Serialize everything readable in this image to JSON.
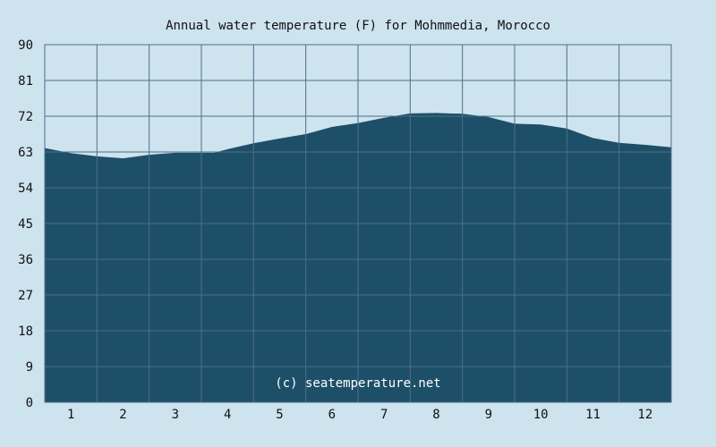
{
  "chart_data": {
    "type": "area",
    "title": "Annual water temperature (F) for Mohmmedia, Morocco",
    "watermark": "(c) seatemperature.net",
    "x_ticks": [
      "1",
      "2",
      "3",
      "4",
      "5",
      "6",
      "7",
      "8",
      "9",
      "10",
      "11",
      "12"
    ],
    "y_ticks": [
      "0",
      "9",
      "18",
      "27",
      "36",
      "45",
      "54",
      "63",
      "72",
      "81",
      "90"
    ],
    "ylim": [
      0,
      90
    ],
    "xlim": [
      0.5,
      12.5
    ],
    "grid": true,
    "series": [
      {
        "x": [
          0.5,
          1.0,
          1.5,
          2.0,
          2.5,
          3.0,
          3.5,
          3.75,
          4.0,
          4.5,
          5.0,
          5.5,
          6.0,
          6.5,
          7.0,
          7.5,
          8.0,
          8.5,
          9.0,
          9.5,
          10.0,
          10.5,
          11.0,
          11.5,
          12.0,
          12.5
        ],
        "y": [
          64.0,
          62.7,
          61.9,
          61.4,
          62.3,
          62.8,
          62.8,
          62.8,
          63.7,
          65.2,
          66.4,
          67.5,
          69.3,
          70.3,
          71.6,
          72.7,
          72.8,
          72.6,
          71.8,
          70.1,
          69.9,
          68.9,
          66.5,
          65.3,
          64.8,
          64.2
        ]
      }
    ],
    "colors": {
      "background": "#cde3ee",
      "fill": "#1e4f68",
      "grid": "#4f6e88",
      "watermark": "#ffffff"
    }
  }
}
